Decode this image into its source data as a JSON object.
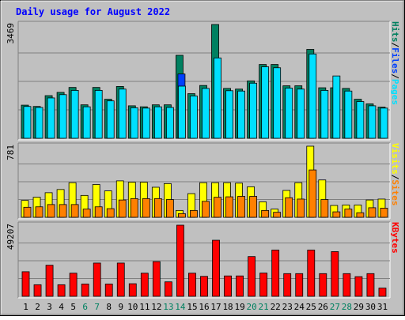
{
  "chart_data": {
    "type": "bar",
    "title": "Daily usage for August 2022",
    "categories": [
      "1",
      "2",
      "3",
      "4",
      "5",
      "6",
      "7",
      "8",
      "9",
      "10",
      "11",
      "12",
      "13",
      "14",
      "15",
      "16",
      "17",
      "18",
      "19",
      "20",
      "21",
      "22",
      "23",
      "24",
      "25",
      "26",
      "27",
      "28",
      "29",
      "30",
      "31"
    ],
    "weekend_days": [
      "6",
      "7",
      "13",
      "14",
      "20",
      "21",
      "27",
      "28"
    ],
    "panels": [
      {
        "id": "hits-files-pages",
        "max_label": "3469",
        "ylim": [
          0,
          3469
        ],
        "legend": [
          "Pages",
          "/",
          "Files",
          "/",
          "Hits"
        ],
        "legend_colors": [
          "#00e0ff",
          "#000000",
          "#0040ff",
          "#000000",
          "#008060"
        ],
        "series": [
          {
            "name": "Hits",
            "color": "#008060",
            "values": [
              1010,
              970,
              1300,
              1400,
              1550,
              1020,
              1550,
              1190,
              1580,
              990,
              960,
              1020,
              1020,
              2530,
              1360,
              1610,
              3469,
              1520,
              1500,
              1750,
              2250,
              2250,
              1600,
              1600,
              2710,
              1540,
              1540,
              1520,
              1190,
              1050,
              950
            ]
          },
          {
            "name": "Files",
            "color": "#0040ff",
            "values": [
              0,
              0,
              0,
              0,
              0,
              0,
              0,
              0,
              0,
              0,
              0,
              0,
              0,
              1960,
              0,
              0,
              0,
              0,
              0,
              0,
              0,
              0,
              0,
              0,
              0,
              0,
              0,
              0,
              0,
              0,
              0
            ]
          },
          {
            "name": "Pages",
            "color": "#00e0ff",
            "values": [
              970,
              940,
              1230,
              1330,
              1460,
              960,
              1460,
              1140,
              1500,
              930,
              920,
              960,
              940,
              1590,
              1290,
              1520,
              2450,
              1450,
              1440,
              1680,
              2180,
              2150,
              1530,
              1500,
              2570,
              1460,
              1900,
              1440,
              1120,
              990,
              920
            ]
          }
        ]
      },
      {
        "id": "visits-sites",
        "max_label": "781",
        "ylim": [
          0,
          781
        ],
        "legend": [
          "Sites",
          "/",
          "Visits"
        ],
        "legend_colors": [
          "#ff8000",
          "#000000",
          "#ffff00"
        ],
        "series": [
          {
            "name": "Visits",
            "color": "#ffff00",
            "values": [
              185,
              220,
              270,
              305,
              380,
              240,
              360,
              290,
              400,
              385,
              385,
              330,
              370,
              75,
              260,
              380,
              380,
              380,
              375,
              335,
              170,
              90,
              295,
              380,
              781,
              410,
              130,
              135,
              135,
              190,
              200
            ]
          },
          {
            "name": "Sites",
            "color": "#ff8000",
            "values": [
              110,
              115,
              140,
              140,
              140,
              90,
              115,
              95,
              190,
              205,
              205,
              205,
              195,
              40,
              75,
              175,
              220,
              225,
              230,
              230,
              75,
              55,
              215,
              200,
              520,
              195,
              60,
              90,
              50,
              105,
              100
            ]
          }
        ]
      },
      {
        "id": "kbytes",
        "max_label": "49207",
        "ylim": [
          0,
          49207
        ],
        "legend": [
          "KBytes"
        ],
        "legend_colors": [
          "#ff0000"
        ],
        "series": [
          {
            "name": "KBytes",
            "color": "#ff0000",
            "values": [
              17000,
              8000,
              21500,
              8000,
              16000,
              8500,
              23000,
              8500,
              23000,
              8700,
              16000,
              24000,
              10000,
              49207,
              16000,
              13800,
              38800,
              14100,
              14100,
              27500,
              16100,
              32000,
              15700,
              15700,
              32000,
              15700,
              30900,
              15700,
              13600,
              15700,
              5700
            ]
          }
        ]
      }
    ]
  }
}
